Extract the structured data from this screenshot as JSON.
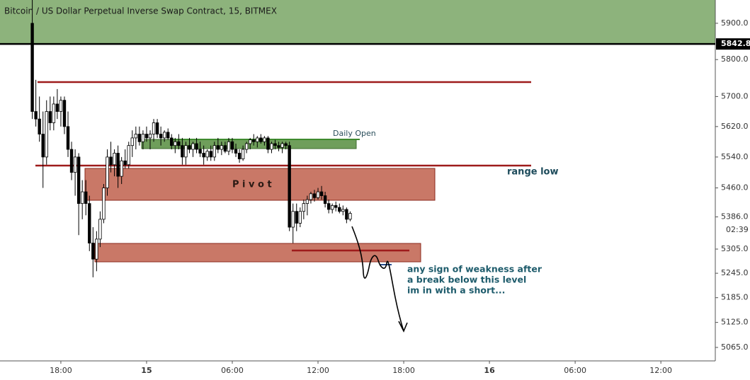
{
  "chart_data": {
    "type": "candlestick",
    "title": "Bitcoin / US Dollar Perpetual Inverse Swap Contract, 15, BITMEX",
    "log_scale": true,
    "grid": false,
    "up_color": "#ffffff",
    "down_color": "#000000",
    "xlim": [
      13.74,
      63.81
    ],
    "ylim": [
      5033,
      5965
    ],
    "xticks": [
      {
        "value": 18,
        "label": "18:00"
      },
      {
        "value": 24,
        "label": "15"
      },
      {
        "value": 30,
        "label": "06:00"
      },
      {
        "value": 36,
        "label": "12:00"
      },
      {
        "value": 42,
        "label": "18:00"
      },
      {
        "value": 48,
        "label": "16"
      },
      {
        "value": 54,
        "label": "06:00"
      },
      {
        "value": 60,
        "label": "12:00"
      }
    ],
    "yticks": [
      {
        "value": 5900,
        "label": "5900.0"
      },
      {
        "value": 5800,
        "label": "5800.0"
      },
      {
        "value": 5700,
        "label": "5700.0"
      },
      {
        "value": 5620,
        "label": "5620.0"
      },
      {
        "value": 5540,
        "label": "5540.0"
      },
      {
        "value": 5460,
        "label": "5460.0"
      },
      {
        "value": 5386,
        "label": "5386.0"
      },
      {
        "value": 5305,
        "label": "5305.0"
      },
      {
        "value": 5245,
        "label": "5245.0"
      },
      {
        "value": 5185,
        "label": "5185.0"
      },
      {
        "value": 5125,
        "label": "5125.0"
      },
      {
        "value": 5065,
        "label": "5065.0"
      }
    ],
    "last_price": {
      "value": 5842.8,
      "label": "5842.8"
    },
    "countdown": "02:39",
    "x": [
      16.0,
      16.25,
      16.5,
      16.75,
      17.0,
      17.25,
      17.5,
      17.75,
      18.0,
      18.25,
      18.5,
      18.75,
      19.0,
      19.25,
      19.5,
      19.75,
      20.0,
      20.25,
      20.5,
      20.75,
      21.0,
      21.25,
      21.5,
      21.75,
      22.0,
      22.25,
      22.5,
      22.75,
      23.0,
      23.25,
      23.5,
      23.75,
      24.0,
      24.25,
      24.5,
      24.75,
      25.0,
      25.25,
      25.5,
      25.75,
      26.0,
      26.25,
      26.5,
      26.75,
      27.0,
      27.25,
      27.5,
      27.75,
      28.0,
      28.25,
      28.5,
      28.75,
      29.0,
      29.25,
      29.5,
      29.75,
      30.0,
      30.25,
      30.5,
      30.75,
      31.0,
      31.25,
      31.5,
      31.75,
      32.0,
      32.25,
      32.5,
      32.75,
      33.0,
      33.25,
      33.5,
      33.75,
      34.0,
      34.25,
      34.5,
      34.75,
      35.0,
      35.25,
      35.5,
      35.75,
      36.0,
      36.25,
      36.5,
      36.75,
      37.0,
      37.25,
      37.5,
      37.75,
      38.0,
      38.25
    ],
    "open": [
      5900,
      5660,
      5640,
      5600,
      5540,
      5660,
      5630,
      5680,
      5660,
      5690,
      5620,
      5560,
      5500,
      5540,
      5420,
      5450,
      5420,
      5320,
      5280,
      5330,
      5380,
      5460,
      5540,
      5520,
      5550,
      5490,
      5530,
      5520,
      5570,
      5590,
      5600,
      5580,
      5600,
      5590,
      5600,
      5630,
      5600,
      5590,
      5605,
      5590,
      5570,
      5580,
      5570,
      5540,
      5570,
      5560,
      5575,
      5560,
      5550,
      5540,
      5555,
      5540,
      5570,
      5560,
      5570,
      5555,
      5580,
      5560,
      5550,
      5535,
      5560,
      5575,
      5585,
      5580,
      5590,
      5580,
      5590,
      5560,
      5575,
      5570,
      5565,
      5575,
      5570,
      5360,
      5400,
      5370,
      5400,
      5420,
      5430,
      5445,
      5435,
      5450,
      5440,
      5420,
      5405,
      5415,
      5410,
      5400,
      5405,
      5380
    ],
    "high": [
      5965,
      5745,
      5700,
      5660,
      5690,
      5700,
      5700,
      5720,
      5700,
      5700,
      5660,
      5580,
      5560,
      5550,
      5480,
      5480,
      5440,
      5360,
      5350,
      5400,
      5470,
      5560,
      5580,
      5560,
      5570,
      5540,
      5560,
      5580,
      5610,
      5620,
      5620,
      5610,
      5620,
      5610,
      5640,
      5640,
      5620,
      5610,
      5615,
      5600,
      5590,
      5600,
      5590,
      5580,
      5590,
      5580,
      5590,
      5580,
      5570,
      5560,
      5570,
      5580,
      5590,
      5580,
      5580,
      5590,
      5590,
      5575,
      5560,
      5570,
      5580,
      5590,
      5600,
      5595,
      5600,
      5595,
      5595,
      5580,
      5585,
      5580,
      5580,
      5580,
      5580,
      5420,
      5420,
      5410,
      5430,
      5440,
      5450,
      5455,
      5460,
      5465,
      5450,
      5430,
      5420,
      5425,
      5420,
      5415,
      5410,
      5400
    ],
    "low": [
      5640,
      5620,
      5580,
      5460,
      5520,
      5610,
      5610,
      5640,
      5620,
      5600,
      5540,
      5480,
      5440,
      5340,
      5380,
      5390,
      5300,
      5235,
      5250,
      5310,
      5370,
      5440,
      5500,
      5490,
      5460,
      5470,
      5510,
      5510,
      5540,
      5560,
      5570,
      5560,
      5580,
      5560,
      5580,
      5590,
      5570,
      5580,
      5585,
      5560,
      5550,
      5560,
      5520,
      5520,
      5550,
      5540,
      5550,
      5540,
      5520,
      5530,
      5530,
      5530,
      5550,
      5545,
      5550,
      5545,
      5550,
      5540,
      5525,
      5530,
      5550,
      5560,
      5570,
      5565,
      5575,
      5570,
      5550,
      5550,
      5560,
      5555,
      5550,
      5560,
      5350,
      5320,
      5350,
      5360,
      5380,
      5390,
      5420,
      5425,
      5430,
      5430,
      5410,
      5395,
      5395,
      5400,
      5395,
      5390,
      5370,
      5375
    ],
    "close": [
      5660,
      5640,
      5600,
      5540,
      5660,
      5630,
      5680,
      5660,
      5690,
      5620,
      5560,
      5500,
      5540,
      5420,
      5450,
      5420,
      5320,
      5280,
      5330,
      5380,
      5460,
      5540,
      5520,
      5550,
      5490,
      5530,
      5520,
      5570,
      5590,
      5600,
      5580,
      5600,
      5590,
      5600,
      5630,
      5600,
      5590,
      5605,
      5590,
      5570,
      5580,
      5570,
      5540,
      5570,
      5560,
      5575,
      5560,
      5550,
      5540,
      5555,
      5540,
      5570,
      5560,
      5570,
      5555,
      5580,
      5560,
      5550,
      5535,
      5560,
      5575,
      5585,
      5580,
      5590,
      5580,
      5590,
      5560,
      5575,
      5570,
      5565,
      5575,
      5570,
      5360,
      5400,
      5370,
      5400,
      5420,
      5430,
      5445,
      5435,
      5450,
      5440,
      5420,
      5405,
      5415,
      5410,
      5400,
      5405,
      5380,
      5395
    ]
  },
  "annotations": {
    "daily_open": "Daily Open",
    "range_low": "range low",
    "pivot": "P i v o t",
    "comment": [
      "any sign of weakness after",
      "a break below this level",
      "im in with a short..."
    ]
  }
}
